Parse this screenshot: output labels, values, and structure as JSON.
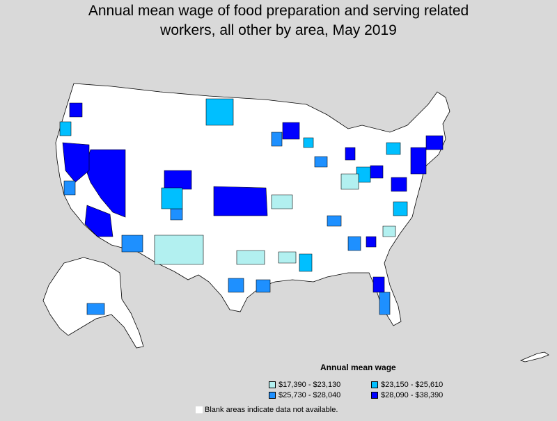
{
  "title_line1": "Annual mean wage of food preparation and serving related",
  "title_line2": "workers, all other by area, May 2019",
  "legend": {
    "title": "Annual mean wage",
    "items": [
      {
        "label": "$17,390 - $23,130",
        "color": "#b2f0f0"
      },
      {
        "label": "$23,150 - $25,610",
        "color": "#00bfff"
      },
      {
        "label": "$25,730 - $28,040",
        "color": "#1e90ff"
      },
      {
        "label": "$28,090 - $38,390",
        "color": "#0000ff"
      }
    ]
  },
  "blank_note": "Blank areas indicate data not available.",
  "colors": {
    "background": "#d9d9d9",
    "no_data": "#ffffff",
    "border": "#000000"
  }
}
